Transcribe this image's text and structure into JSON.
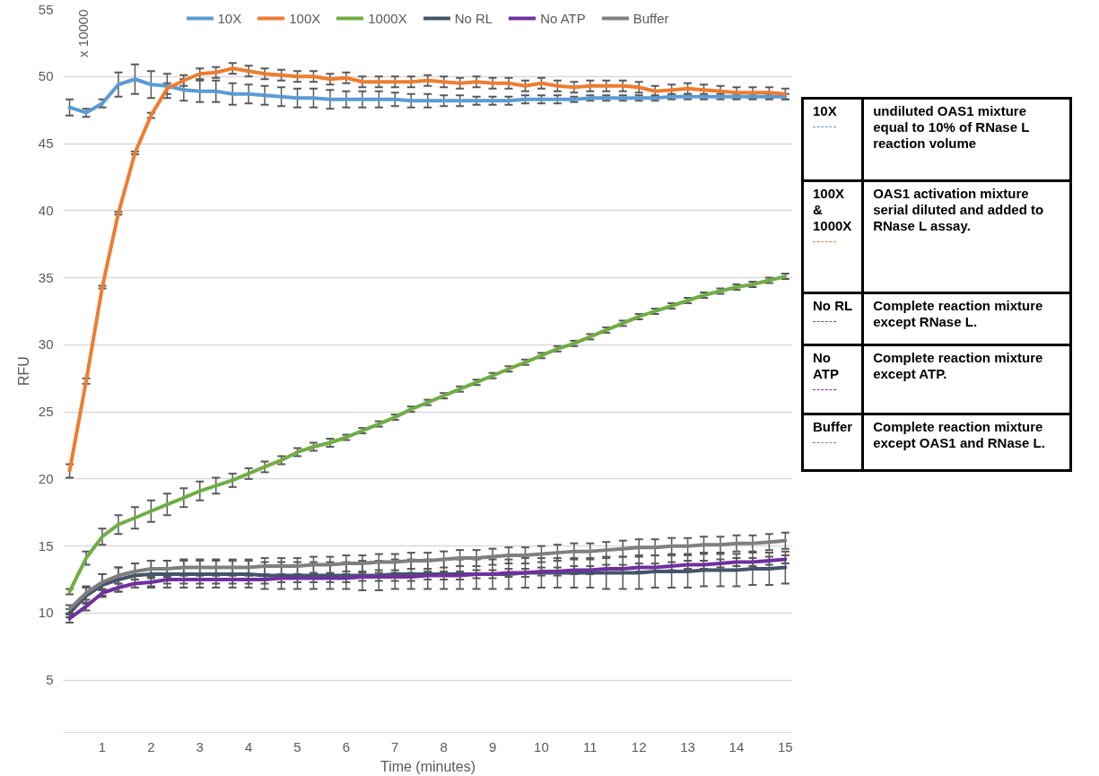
{
  "chart_data": [
    {
      "type": "line",
      "xlabel": "Time (minutes)",
      "ylabel": "RFU",
      "legend": "top",
      "grid": "y",
      "annotations": [
        "x 10000"
      ],
      "xlim": [
        0.2,
        15.15
      ],
      "ylim": [
        1.1,
        55
      ],
      "xticks": [
        1,
        2,
        3,
        4,
        5,
        6,
        7,
        8,
        9,
        10,
        11,
        12,
        13,
        14,
        15
      ],
      "yticks": [
        5,
        10,
        15,
        20,
        25,
        30,
        35,
        40,
        45,
        50,
        55
      ],
      "x": [
        0.33,
        0.67,
        1,
        1.33,
        1.67,
        2,
        2.33,
        2.67,
        3,
        3.33,
        3.67,
        4,
        4.33,
        4.67,
        5,
        5.33,
        5.67,
        6,
        6.33,
        6.67,
        7,
        7.33,
        7.67,
        8,
        8.33,
        8.67,
        9,
        9.33,
        9.67,
        10,
        10.33,
        10.67,
        11,
        11.33,
        11.67,
        12,
        12.33,
        12.67,
        13,
        13.33,
        13.67,
        14,
        14.33,
        14.67,
        15
      ],
      "series": [
        {
          "name": "10X",
          "color": "#5b9bd5",
          "values": [
            47.7,
            47.3,
            48.0,
            49.4,
            49.8,
            49.4,
            49.3,
            49.0,
            48.9,
            48.9,
            48.7,
            48.7,
            48.6,
            48.5,
            48.4,
            48.4,
            48.3,
            48.3,
            48.3,
            48.3,
            48.3,
            48.2,
            48.2,
            48.2,
            48.2,
            48.2,
            48.2,
            48.2,
            48.3,
            48.3,
            48.3,
            48.3,
            48.4,
            48.4,
            48.4,
            48.4,
            48.4,
            48.5,
            48.5,
            48.5,
            48.5,
            48.5,
            48.5,
            48.5,
            48.5
          ],
          "errors": [
            0.6,
            0.3,
            0.3,
            0.9,
            1.1,
            1.0,
            0.9,
            0.8,
            0.8,
            0.8,
            0.8,
            0.7,
            0.7,
            0.7,
            0.7,
            0.7,
            0.7,
            0.6,
            0.6,
            0.6,
            0.5,
            0.5,
            0.5,
            0.4,
            0.4,
            0.3,
            0.3,
            0.3,
            0.3,
            0.3,
            0.3,
            0.2,
            0.2,
            0.2,
            0.2,
            0.2,
            0.2,
            0.2,
            0.2,
            0.2,
            0.2,
            0.2,
            0.2,
            0.2,
            0.2
          ]
        },
        {
          "name": "100X",
          "color": "#ed7d31",
          "values": [
            20.6,
            27.3,
            34.3,
            39.8,
            44.3,
            47.1,
            49.1,
            49.7,
            50.2,
            50.3,
            50.6,
            50.4,
            50.2,
            50.1,
            50.0,
            50.0,
            49.8,
            49.9,
            49.6,
            49.6,
            49.6,
            49.6,
            49.7,
            49.6,
            49.5,
            49.6,
            49.5,
            49.5,
            49.3,
            49.5,
            49.3,
            49.2,
            49.3,
            49.3,
            49.3,
            49.2,
            48.9,
            49.0,
            49.1,
            49.0,
            48.9,
            48.8,
            48.8,
            48.8,
            48.7
          ],
          "errors": [
            0.5,
            0.2,
            0.1,
            0.1,
            0.1,
            0.2,
            0.4,
            0.4,
            0.4,
            0.4,
            0.4,
            0.4,
            0.4,
            0.4,
            0.4,
            0.4,
            0.4,
            0.4,
            0.4,
            0.4,
            0.4,
            0.4,
            0.4,
            0.4,
            0.4,
            0.4,
            0.4,
            0.4,
            0.4,
            0.4,
            0.4,
            0.4,
            0.4,
            0.4,
            0.4,
            0.4,
            0.4,
            0.4,
            0.4,
            0.4,
            0.4,
            0.4,
            0.4,
            0.4,
            0.4
          ]
        },
        {
          "name": "1000X",
          "color": "#70ad47",
          "values": [
            11.6,
            14.1,
            15.7,
            16.6,
            17.1,
            17.6,
            18.1,
            18.6,
            19.1,
            19.5,
            19.9,
            20.4,
            20.9,
            21.4,
            22.0,
            22.4,
            22.7,
            23.1,
            23.6,
            24.1,
            24.6,
            25.2,
            25.7,
            26.2,
            26.7,
            27.2,
            27.7,
            28.2,
            28.7,
            29.2,
            29.7,
            30.1,
            30.6,
            31.1,
            31.6,
            32.1,
            32.5,
            32.9,
            33.3,
            33.7,
            34.0,
            34.3,
            34.5,
            34.8,
            35.1
          ],
          "errors": [
            0.2,
            0.5,
            0.6,
            0.7,
            0.8,
            0.8,
            0.8,
            0.7,
            0.7,
            0.6,
            0.5,
            0.4,
            0.4,
            0.3,
            0.3,
            0.3,
            0.3,
            0.2,
            0.2,
            0.2,
            0.2,
            0.2,
            0.2,
            0.2,
            0.2,
            0.2,
            0.2,
            0.2,
            0.2,
            0.2,
            0.2,
            0.2,
            0.2,
            0.2,
            0.2,
            0.2,
            0.2,
            0.2,
            0.2,
            0.2,
            0.2,
            0.2,
            0.2,
            0.2,
            0.2
          ]
        },
        {
          "name": "No RL",
          "color": "#44546a",
          "values": [
            10.0,
            11.3,
            12.1,
            12.5,
            12.8,
            12.9,
            12.9,
            12.9,
            12.9,
            12.9,
            12.9,
            12.9,
            12.8,
            12.8,
            12.8,
            12.8,
            12.8,
            12.8,
            12.8,
            12.8,
            12.9,
            12.9,
            12.9,
            12.9,
            12.9,
            12.9,
            12.9,
            12.9,
            13.0,
            13.0,
            13.0,
            13.0,
            13.0,
            13.0,
            13.0,
            13.0,
            13.1,
            13.1,
            13.1,
            13.2,
            13.2,
            13.2,
            13.3,
            13.3,
            13.4
          ],
          "errors": [
            0.3,
            0.6,
            0.8,
            0.9,
            0.9,
            1.0,
            1.0,
            1.0,
            1.0,
            1.0,
            1.0,
            1.0,
            1.0,
            1.0,
            1.0,
            1.0,
            1.0,
            1.0,
            1.1,
            1.1,
            1.1,
            1.1,
            1.1,
            1.1,
            1.1,
            1.1,
            1.1,
            1.1,
            1.1,
            1.1,
            1.1,
            1.1,
            1.1,
            1.2,
            1.2,
            1.2,
            1.2,
            1.2,
            1.2,
            1.2,
            1.2,
            1.2,
            1.2,
            1.2,
            1.2
          ]
        },
        {
          "name": "No ATP",
          "color": "#7030a0",
          "values": [
            9.6,
            10.5,
            11.5,
            11.9,
            12.2,
            12.3,
            12.5,
            12.5,
            12.5,
            12.5,
            12.5,
            12.5,
            12.5,
            12.6,
            12.6,
            12.6,
            12.6,
            12.6,
            12.7,
            12.7,
            12.7,
            12.7,
            12.8,
            12.8,
            12.8,
            12.9,
            12.9,
            13.0,
            13.0,
            13.1,
            13.1,
            13.2,
            13.2,
            13.3,
            13.3,
            13.4,
            13.4,
            13.5,
            13.6,
            13.6,
            13.7,
            13.8,
            13.8,
            13.9,
            14.0
          ],
          "errors": [
            0.3,
            0.3,
            0.3,
            0.3,
            0.3,
            0.3,
            0.3,
            0.3,
            0.3,
            0.3,
            0.3,
            0.3,
            0.3,
            0.3,
            0.3,
            0.3,
            0.3,
            0.3,
            0.3,
            0.3,
            0.3,
            0.3,
            0.3,
            0.3,
            0.3,
            0.3,
            0.3,
            0.3,
            0.3,
            0.3,
            0.3,
            0.3,
            0.3,
            0.3,
            0.3,
            0.3,
            0.3,
            0.3,
            0.3,
            0.3,
            0.3,
            0.3,
            0.3,
            0.3,
            0.3
          ]
        },
        {
          "name": "Buffer",
          "color": "#7f7f7f",
          "values": [
            10.3,
            11.5,
            12.3,
            12.8,
            13.1,
            13.3,
            13.3,
            13.4,
            13.4,
            13.4,
            13.4,
            13.4,
            13.5,
            13.5,
            13.5,
            13.6,
            13.6,
            13.7,
            13.7,
            13.8,
            13.8,
            13.9,
            13.9,
            14.0,
            14.1,
            14.1,
            14.2,
            14.3,
            14.3,
            14.4,
            14.5,
            14.6,
            14.6,
            14.7,
            14.8,
            14.9,
            14.9,
            15.0,
            15.0,
            15.1,
            15.1,
            15.2,
            15.2,
            15.3,
            15.4
          ],
          "errors": [
            0.3,
            0.5,
            0.6,
            0.6,
            0.6,
            0.6,
            0.6,
            0.6,
            0.6,
            0.6,
            0.6,
            0.6,
            0.6,
            0.6,
            0.6,
            0.6,
            0.6,
            0.6,
            0.6,
            0.6,
            0.6,
            0.6,
            0.6,
            0.6,
            0.6,
            0.6,
            0.6,
            0.6,
            0.6,
            0.6,
            0.6,
            0.6,
            0.6,
            0.6,
            0.6,
            0.6,
            0.6,
            0.6,
            0.6,
            0.6,
            0.6,
            0.6,
            0.6,
            0.6,
            0.6
          ]
        }
      ]
    },
    {
      "type": "other",
      "annotations": [
        "10X",
        "undiluted OAS1 mixture\nequal to 10% of RNase L\nreaction volume",
        "100X\n&\n1000X",
        "OAS1 activation mixture\nserial diluted and added to\nRNase L assay.",
        "No RL",
        "Complete reaction mixture\nexcept RNase L.",
        "No\nATP",
        "Complete reaction mixture\nexcept ATP.",
        "Buffer",
        "Complete reaction mixture\nexcept OAS1 and RNase L."
      ]
    }
  ]
}
